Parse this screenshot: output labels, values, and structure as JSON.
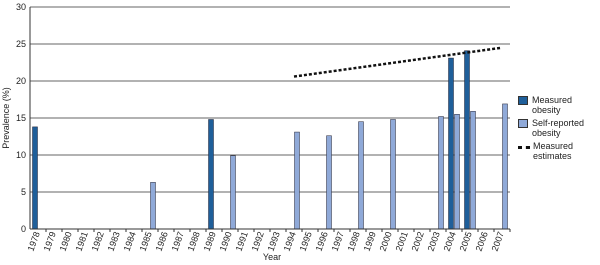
{
  "chart_data": {
    "type": "bar",
    "x_label": "Year",
    "y_label": "Prevalence (%)",
    "categories": [
      "1978",
      "1979",
      "1980",
      "1981",
      "1982",
      "1983",
      "1984",
      "1985",
      "1986",
      "1987",
      "1988",
      "1989",
      "1990",
      "1991",
      "1992",
      "1993",
      "1994",
      "1995",
      "1996",
      "1997",
      "1998",
      "1999",
      "2000",
      "2001",
      "2002",
      "2003",
      "2004",
      "2005",
      "2006",
      "2007"
    ],
    "series": [
      {
        "name": "Measured obesity",
        "color": "#1f5f9a",
        "values": [
          13.8,
          null,
          null,
          null,
          null,
          null,
          null,
          null,
          null,
          null,
          null,
          14.8,
          null,
          null,
          null,
          null,
          null,
          null,
          null,
          null,
          null,
          null,
          null,
          null,
          null,
          null,
          23.1,
          24.1,
          null,
          null
        ]
      },
      {
        "name": "Self-reported obesity",
        "color": "#8fa9d8",
        "values": [
          null,
          null,
          null,
          null,
          null,
          null,
          null,
          6.3,
          null,
          null,
          null,
          null,
          9.9,
          null,
          null,
          null,
          13.1,
          null,
          12.6,
          null,
          14.5,
          null,
          14.8,
          null,
          null,
          15.2,
          15.5,
          15.9,
          null,
          16.9
        ]
      },
      {
        "name": "Measured estimates",
        "color": "#111111",
        "type": "line",
        "dash": true,
        "values": [
          null,
          null,
          null,
          null,
          null,
          null,
          null,
          null,
          null,
          null,
          null,
          null,
          null,
          null,
          null,
          null,
          20.6,
          20.9,
          21.2,
          21.5,
          21.8,
          22.1,
          22.4,
          22.7,
          23.0,
          23.3,
          23.6,
          23.9,
          24.2,
          24.5
        ]
      }
    ],
    "ylim": [
      0,
      30
    ],
    "yticks": [
      0,
      5,
      10,
      15,
      20,
      25,
      30
    ],
    "grid": true
  }
}
